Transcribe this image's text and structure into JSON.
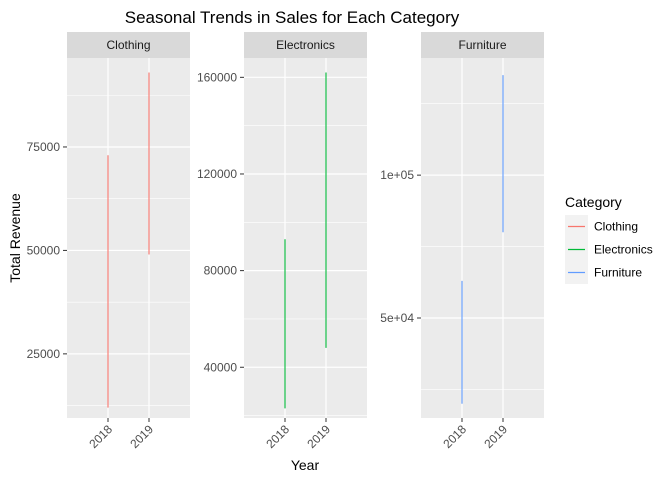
{
  "chart_data": {
    "type": "line",
    "title": "Seasonal Trends in Sales for Each Category",
    "xlabel": "Year",
    "ylabel": "Total Revenue",
    "legend": {
      "title": "Category",
      "placement": "right",
      "entries": [
        {
          "name": "Clothing",
          "color": "#F8766D"
        },
        {
          "name": "Electronics",
          "color": "#00BA38"
        },
        {
          "name": "Furniture",
          "color": "#619CFF"
        }
      ]
    },
    "grid": true,
    "x_categories": [
      "2018",
      "2019"
    ],
    "facets": [
      {
        "name": "Clothing",
        "color": "#F8766D",
        "ylim": [
          9500,
          96500
        ],
        "yticks": [
          25000,
          50000,
          75000
        ],
        "ytick_labels": [
          "25000",
          "50000",
          "75000"
        ],
        "segments": [
          {
            "x": "2018",
            "y": [
              12000,
              73000
            ]
          },
          {
            "x": "2019",
            "y": [
              49000,
              93000
            ]
          }
        ]
      },
      {
        "name": "Electronics",
        "color": "#00BA38",
        "ylim": [
          19000,
          168000
        ],
        "yticks": [
          40000,
          80000,
          120000,
          160000
        ],
        "ytick_labels": [
          "40000",
          "80000",
          "120000",
          "160000"
        ],
        "segments": [
          {
            "x": "2018",
            "y": [
              23000,
              93000
            ]
          },
          {
            "x": "2019",
            "y": [
              48000,
              162000
            ]
          }
        ]
      },
      {
        "name": "Furniture",
        "color": "#619CFF",
        "ylim": [
          15000,
          141000
        ],
        "yticks": [
          50000,
          100000
        ],
        "ytick_labels": [
          "5e+04",
          "1e+05"
        ],
        "segments": [
          {
            "x": "2018",
            "y": [
              20000,
              63000
            ]
          },
          {
            "x": "2019",
            "y": [
              80000,
              135000
            ]
          }
        ]
      }
    ]
  }
}
